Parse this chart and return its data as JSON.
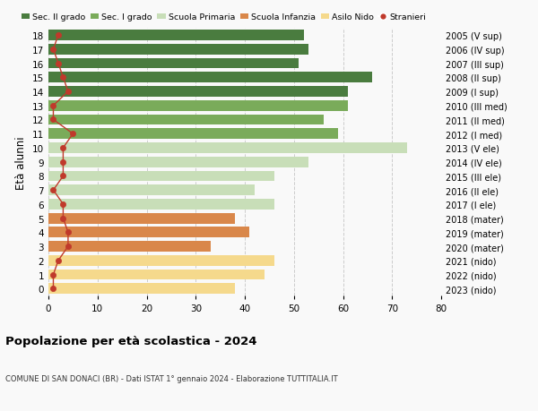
{
  "ages": [
    18,
    17,
    16,
    15,
    14,
    13,
    12,
    11,
    10,
    9,
    8,
    7,
    6,
    5,
    4,
    3,
    2,
    1,
    0
  ],
  "years": [
    "2005 (V sup)",
    "2006 (IV sup)",
    "2007 (III sup)",
    "2008 (II sup)",
    "2009 (I sup)",
    "2010 (III med)",
    "2011 (II med)",
    "2012 (I med)",
    "2013 (V ele)",
    "2014 (IV ele)",
    "2015 (III ele)",
    "2016 (II ele)",
    "2017 (I ele)",
    "2018 (mater)",
    "2019 (mater)",
    "2020 (mater)",
    "2021 (nido)",
    "2022 (nido)",
    "2023 (nido)"
  ],
  "bar_values": [
    52,
    53,
    51,
    66,
    61,
    61,
    56,
    59,
    73,
    53,
    46,
    42,
    46,
    38,
    41,
    33,
    46,
    44,
    38
  ],
  "stranieri": [
    2,
    1,
    2,
    3,
    4,
    1,
    1,
    5,
    3,
    3,
    3,
    1,
    3,
    3,
    4,
    4,
    2,
    1,
    1
  ],
  "bar_colors": [
    "#4a7c3f",
    "#4a7c3f",
    "#4a7c3f",
    "#4a7c3f",
    "#4a7c3f",
    "#7aab5a",
    "#7aab5a",
    "#7aab5a",
    "#c8deb8",
    "#c8deb8",
    "#c8deb8",
    "#c8deb8",
    "#c8deb8",
    "#d9874a",
    "#d9874a",
    "#d9874a",
    "#f5d98c",
    "#f5d98c",
    "#f5d98c"
  ],
  "legend_colors": [
    "#4a7c3f",
    "#7aab5a",
    "#c8deb8",
    "#d9874a",
    "#f5d98c",
    "#c0392b"
  ],
  "legend_labels": [
    "Sec. II grado",
    "Sec. I grado",
    "Scuola Primaria",
    "Scuola Infanzia",
    "Asilo Nido",
    "Stranieri"
  ],
  "title": "Popolazione per età scolastica - 2024",
  "subtitle": "COMUNE DI SAN DONACI (BR) - Dati ISTAT 1° gennaio 2024 - Elaborazione TUTTITALIA.IT",
  "ylabel": "Età alunni",
  "xlim": [
    0,
    80
  ],
  "background_color": "#f9f9f9",
  "grid_color": "#cccccc",
  "stranieri_color": "#c0392b",
  "stranieri_line_color": "#c0392b"
}
